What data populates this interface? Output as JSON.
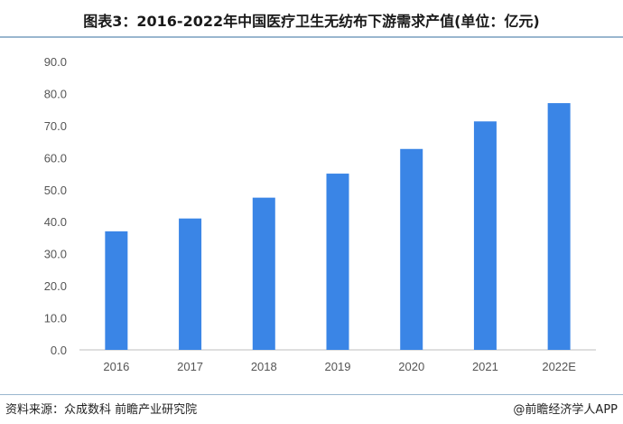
{
  "title": "图表3：2016-2022年中国医疗卫生无纺布下游需求产值(单位：亿元)",
  "source": "资料来源：众成数科 前瞻产业研究院",
  "brand": "@前瞻经济学人APP",
  "colors": {
    "bar": "#3a85e6",
    "axis": "#bfbfbf"
  },
  "chart_data": {
    "type": "bar",
    "categories": [
      "2016",
      "2017",
      "2018",
      "2019",
      "2020",
      "2021",
      "2022E"
    ],
    "values": [
      37.0,
      41.0,
      47.5,
      55.0,
      62.7,
      71.3,
      77.0
    ],
    "ylim": [
      0,
      90
    ],
    "yticks": [
      "0.0",
      "10.0",
      "20.0",
      "30.0",
      "40.0",
      "50.0",
      "60.0",
      "70.0",
      "80.0",
      "90.0"
    ],
    "xlabel": "",
    "ylabel": "",
    "grid": false,
    "legend": "none"
  }
}
